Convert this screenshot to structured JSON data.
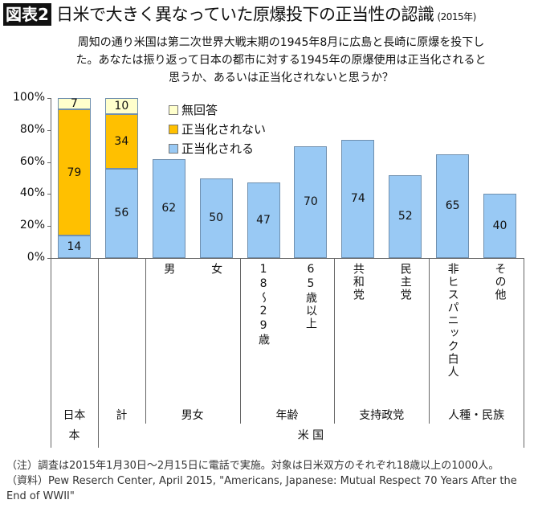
{
  "header": {
    "badge": "図表2",
    "title": "日米で大きく異なっていた原爆投下の正当性の認識",
    "year": "(2015年)"
  },
  "question": "周知の通り米国は第二次世界大戦末期の1945年8月に広島と長崎に原爆を投下した。あなたは振り返って日本の都市に対する1945年の原爆使用は正当化されると思うか、あるいは正当化されないと思うか？",
  "chart_data": {
    "type": "bar",
    "stacked": true,
    "categories": [
      "日本",
      "計",
      "男",
      "女",
      "18～29歳",
      "65歳以上",
      "共和党",
      "民主党",
      "非ヒスパニック白人",
      "その他"
    ],
    "groups": [
      {
        "label": "日本",
        "span": [
          0,
          0
        ]
      },
      {
        "label": "計",
        "span": [
          1,
          1
        ]
      },
      {
        "label": "男女",
        "span": [
          2,
          3
        ]
      },
      {
        "label": "年齢",
        "span": [
          4,
          5
        ]
      },
      {
        "label": "支持政党",
        "span": [
          6,
          7
        ]
      },
      {
        "label": "人種・民族",
        "span": [
          8,
          9
        ]
      }
    ],
    "country_groups": [
      {
        "label": "日本",
        "span": [
          0,
          0
        ]
      },
      {
        "label": "米 国",
        "span": [
          1,
          9
        ]
      }
    ],
    "series": [
      {
        "name": "正当化される",
        "color": "#99c9f4",
        "values": [
          14,
          56,
          62,
          50,
          47,
          70,
          74,
          52,
          65,
          40
        ]
      },
      {
        "name": "正当化されない",
        "color": "#ffc000",
        "values": [
          79,
          34,
          null,
          null,
          null,
          null,
          null,
          null,
          null,
          null
        ]
      },
      {
        "name": "無回答",
        "color": "#ffffcc",
        "values": [
          7,
          10,
          null,
          null,
          null,
          null,
          null,
          null,
          null,
          null
        ]
      }
    ],
    "legend_order": [
      "無回答",
      "正当化されない",
      "正当化される"
    ],
    "legend_position": "top-center",
    "yticks": [
      "0%",
      "20%",
      "40%",
      "60%",
      "80%",
      "100%"
    ],
    "ylim": [
      0,
      100
    ],
    "grid": false
  },
  "notes": [
    "（注）調査は2015年1月30日～2月15日に電話で実施。対象は日米双方のそれぞれ18歳以上の1000人。",
    "（資料）Pew Reserch Center, April  2015, \"Americans, Japanese: Mutual Respect 70 Years After the End of WWII\""
  ]
}
